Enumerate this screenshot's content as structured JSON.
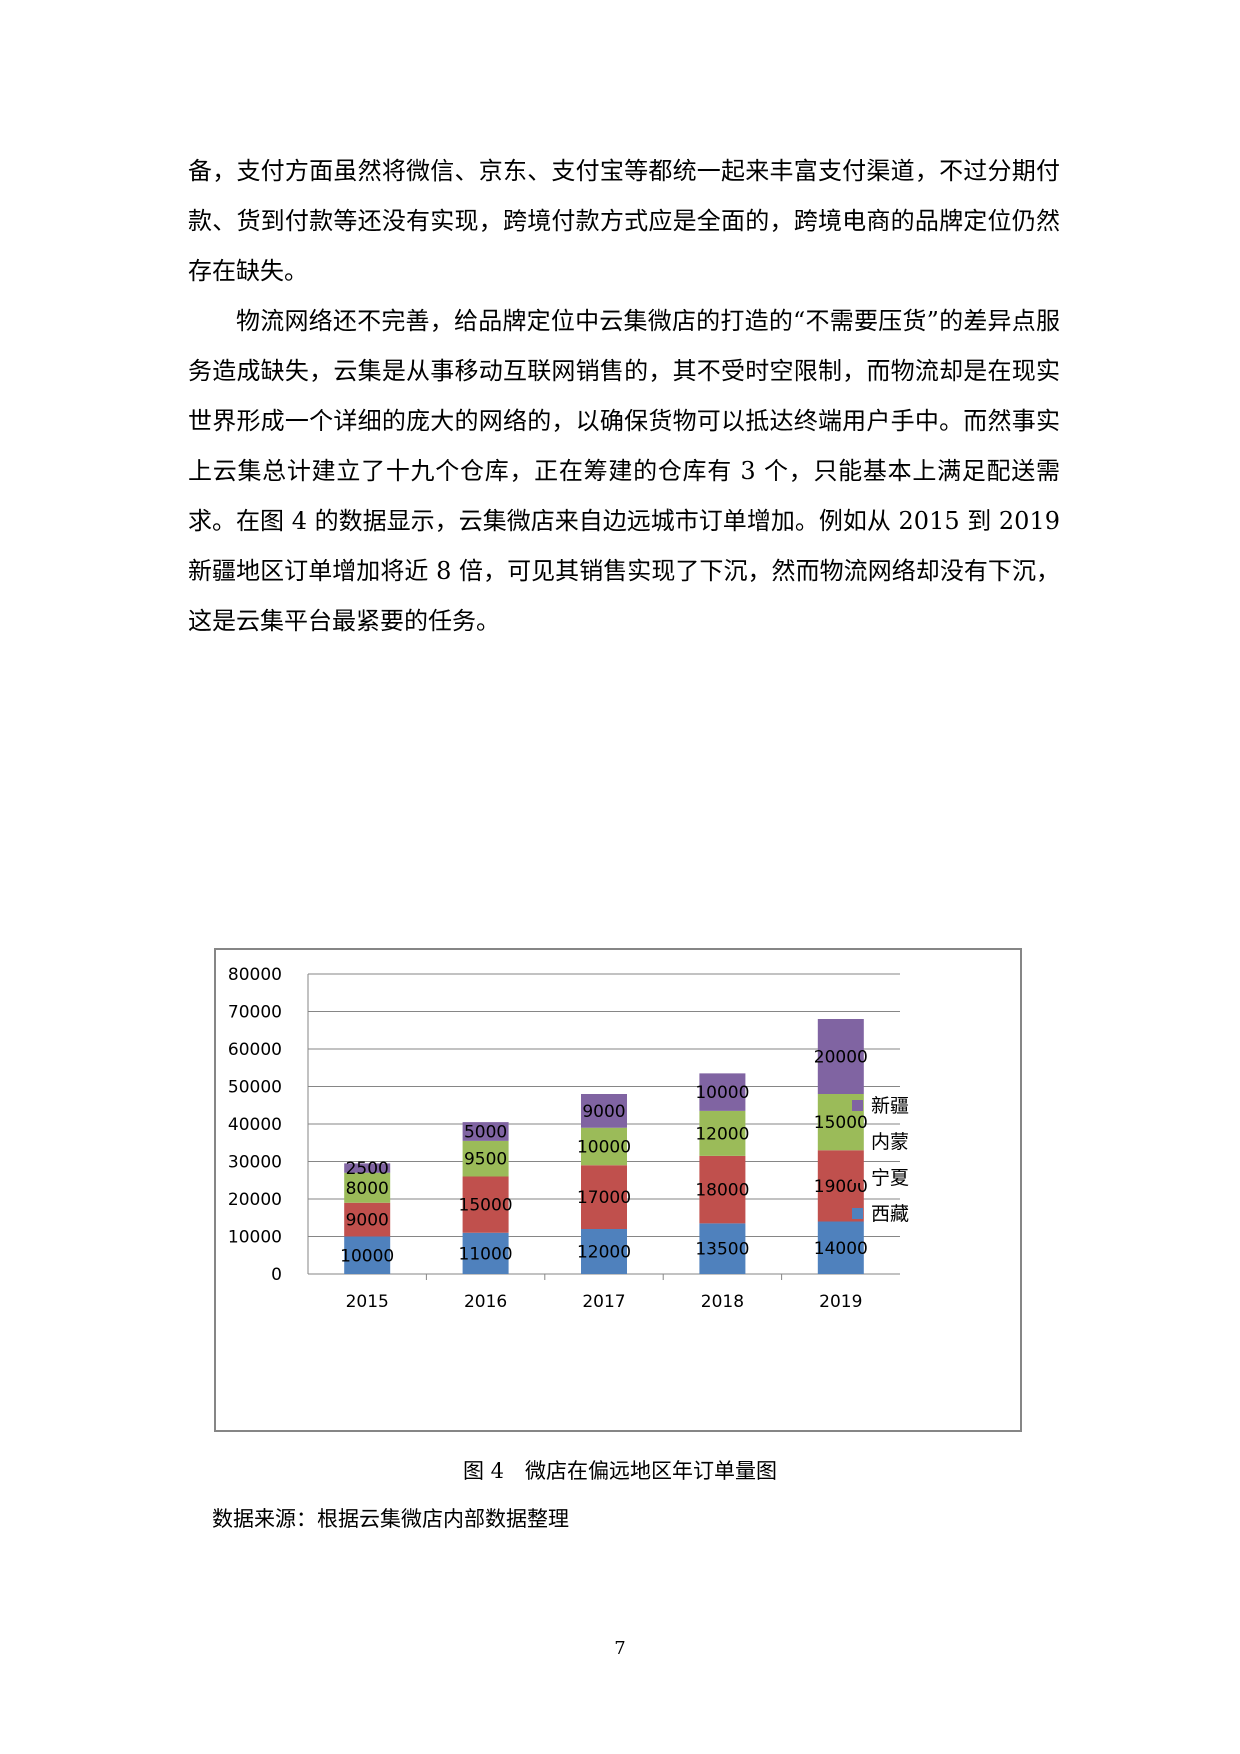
{
  "paragraphs": [
    "备，支付方面虽然将微信、京东、支付宝等都统一起来丰富支付渠道，不过分期付款、货到付款等还没有实现，跨境付款方式应是全面的，跨境电商的品牌定位仍然存在缺失。",
    "物流网络还不完善，给品牌定位中云集微店的打造的“不需要压货”的差异点服务造成缺失，云集是从事移动互联网销售的，其不受时空限制，而物流却是在现实世界形成一个详细的庞大的网络的，以确保货物可以抵达终端用户手中。而然事实上云集总计建立了十九个仓库，正在筹建的仓库有 3 个，只能基本上满足配送需求。在图 4 的数据显示，云集微店来自边远城市订单增加。例如从 2015 到 2019 新疆地区订单增加将近 8 倍，可见其销售实现了下沉，然而物流网络却没有下沉，这是云集平台最紧要的任务。"
  ],
  "caption": "图 4　微店在偏远地区年订单量图",
  "source_note": "数据来源：根据云集微店内部数据整理",
  "page_number": "7",
  "chart_data": {
    "type": "bar",
    "stacked": true,
    "categories": [
      "2015",
      "2016",
      "2017",
      "2018",
      "2019"
    ],
    "series": [
      {
        "name": "西藏",
        "color": "#4F81BD",
        "values": [
          10000,
          11000,
          12000,
          13500,
          14000
        ]
      },
      {
        "name": "宁夏",
        "color": "#C0504D",
        "values": [
          9000,
          15000,
          17000,
          18000,
          19000
        ]
      },
      {
        "name": "内蒙",
        "color": "#9BBB59",
        "values": [
          8000,
          9500,
          10000,
          12000,
          15000
        ]
      },
      {
        "name": "新疆",
        "color": "#8064A2",
        "values": [
          2500,
          5000,
          9000,
          10000,
          20000
        ]
      }
    ],
    "ylim": [
      0,
      80000
    ],
    "yticks": [
      "0",
      "10000",
      "20000",
      "30000",
      "40000",
      "50000",
      "60000",
      "70000",
      "80000"
    ],
    "grid": true,
    "legend_position": "right",
    "legend_order": [
      "新疆",
      "内蒙",
      "宁夏",
      "西藏"
    ]
  }
}
